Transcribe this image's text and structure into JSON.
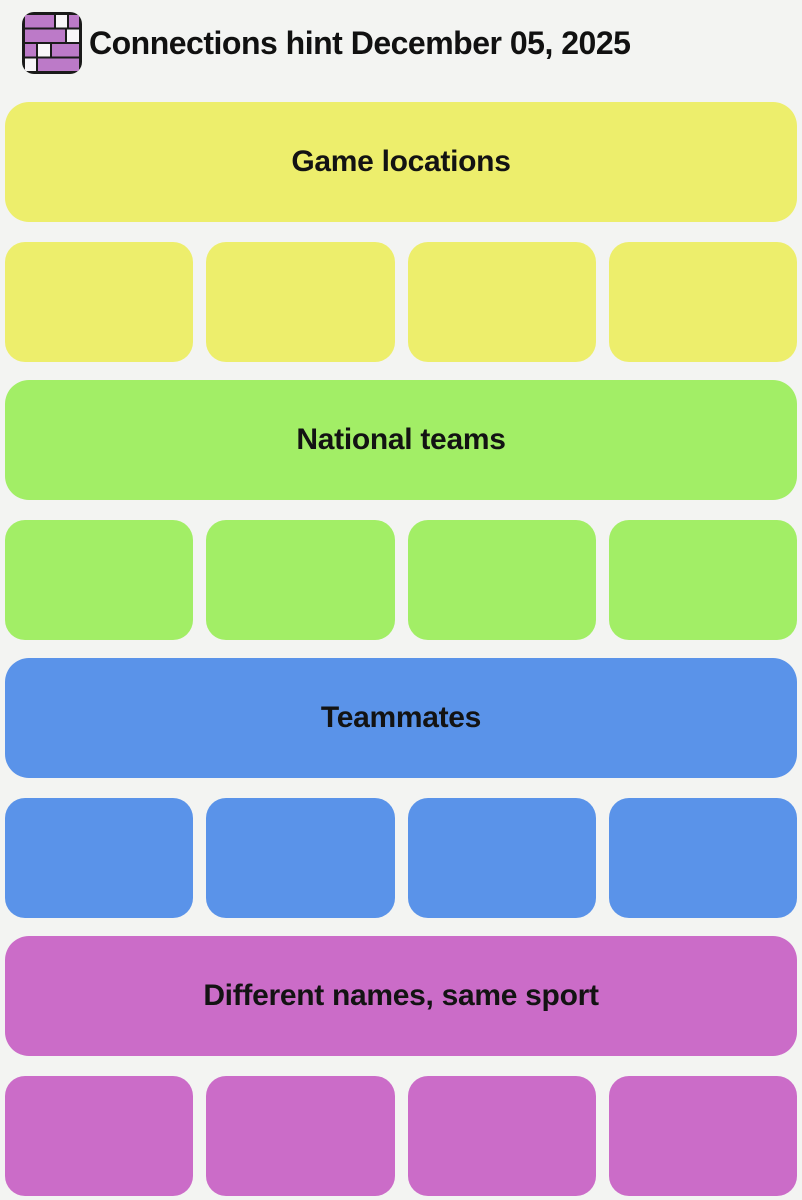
{
  "page": {
    "background_color": "#f3f4f2",
    "text_color": "#111111"
  },
  "header": {
    "title": "Connections hint December 05, 2025",
    "icon": {
      "name": "connections-grid-icon",
      "purple": "#bc7ac8",
      "white": "#f8f6f8",
      "outline": "#1a1a1a"
    }
  },
  "groups": [
    {
      "label": "Game locations",
      "color": "#edee6c",
      "tiles": 4
    },
    {
      "label": "National teams",
      "color": "#a2ee66",
      "tiles": 4
    },
    {
      "label": "Teammates",
      "color": "#5a93e9",
      "tiles": 4
    },
    {
      "label": "Different names, same sport",
      "color": "#cb6cc8",
      "tiles": 4
    }
  ]
}
